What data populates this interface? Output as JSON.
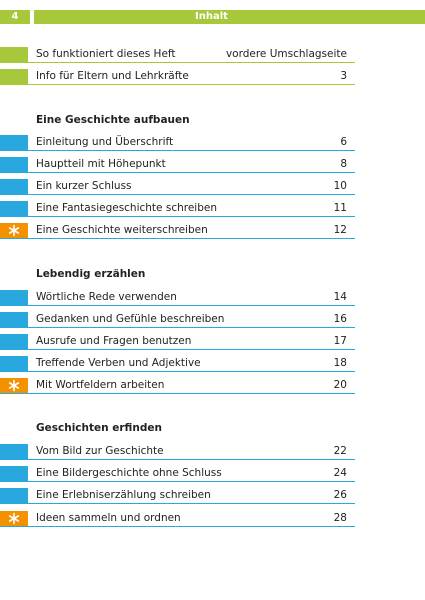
{
  "header": {
    "page": "4",
    "title": "Inhalt"
  },
  "intro": [
    {
      "title": "So funktioniert dieses Heft",
      "page": "vordere Umschlagseite"
    },
    {
      "title": "Info für Eltern und Lehrkräfte",
      "page": 3
    }
  ],
  "sections": [
    {
      "title": "Eine Geschichte aufbauen",
      "entries": [
        {
          "title": "Einleitung und Überschrift",
          "page": 6
        },
        {
          "title": "Hauptteil mit Höhepunkt",
          "page": 8
        },
        {
          "title": "Ein kurzer Schluss",
          "page": 10
        },
        {
          "title": "Eine Fantasiegeschichte schreiben",
          "page": 11
        },
        {
          "title": "Eine Geschichte weiterschreiben",
          "page": 12
        }
      ]
    },
    {
      "title": "Lebendig erzählen",
      "entries": [
        {
          "title": "Wörtliche Rede verwenden",
          "page": 14
        },
        {
          "title": "Gedanken und Gefühle beschreiben",
          "page": 16
        },
        {
          "title": "Ausrufe und Fragen benutzen",
          "page": 17
        },
        {
          "title": "Treffende Verben und Adjektive",
          "page": 18
        },
        {
          "title": "Mit Wortfeldern arbeiten",
          "page": 20
        }
      ]
    },
    {
      "title": "Geschichten erfinden",
      "entries": [
        {
          "title": "Vom Bild zur Geschichte",
          "page": 22
        },
        {
          "title": "Eine Bildergeschichte ohne Schluss",
          "page": 24
        },
        {
          "title": "Eine Erlebniserzählung schreiben",
          "page": 26
        },
        {
          "title": "Ideen sammeln und ordnen",
          "page": 28
        }
      ]
    }
  ]
}
